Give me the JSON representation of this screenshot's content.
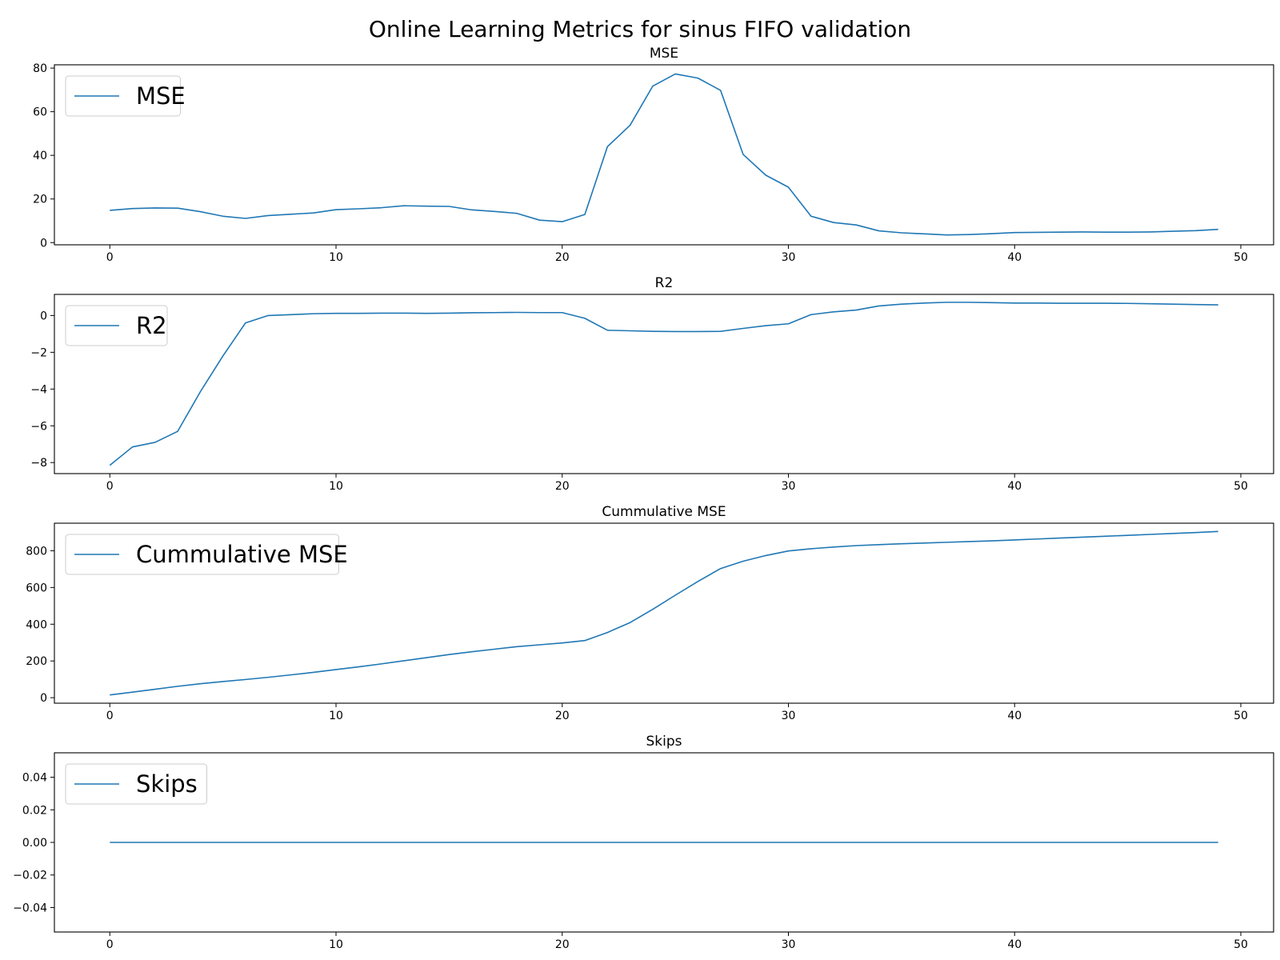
{
  "figure": {
    "title": "Online Learning Metrics for sinus FIFO validation"
  },
  "colors": {
    "line": "#1f77b4",
    "axis": "#000000",
    "legend_border": "#cccccc",
    "background": "#ffffff"
  },
  "chart_data": [
    {
      "type": "line",
      "title": "MSE",
      "xlabel": "",
      "ylabel": "",
      "xlim": [
        -2.45,
        51.45
      ],
      "ylim": [
        -1.0,
        81.5
      ],
      "xticks": [
        0,
        10,
        20,
        30,
        40,
        50
      ],
      "xtick_labels": [
        "0",
        "10",
        "20",
        "30",
        "40",
        "50"
      ],
      "yticks": [
        0,
        20,
        40,
        60,
        80
      ],
      "ytick_labels": [
        "0",
        "20",
        "40",
        "60",
        "80"
      ],
      "grid": false,
      "legend_position": "upper-left",
      "series": [
        {
          "name": "MSE",
          "x": [
            0,
            1,
            2,
            3,
            4,
            5,
            6,
            7,
            8,
            9,
            10,
            11,
            12,
            13,
            14,
            15,
            16,
            17,
            18,
            19,
            20,
            21,
            22,
            23,
            24,
            25,
            26,
            27,
            28,
            29,
            30,
            31,
            32,
            33,
            34,
            35,
            36,
            37,
            38,
            39,
            40,
            41,
            42,
            43,
            44,
            45,
            46,
            47,
            48,
            49
          ],
          "y": [
            14.8,
            15.6,
            15.9,
            15.8,
            14.2,
            12.1,
            11.1,
            12.4,
            13.0,
            13.6,
            15.1,
            15.5,
            16.0,
            16.9,
            16.7,
            16.6,
            15.0,
            14.3,
            13.4,
            10.3,
            9.6,
            12.9,
            44.0,
            53.8,
            71.7,
            77.3,
            75.4,
            69.8,
            40.4,
            30.9,
            25.4,
            12.1,
            9.2,
            8.1,
            5.4,
            4.5,
            4.0,
            3.5,
            3.7,
            4.1,
            4.6,
            4.7,
            4.8,
            4.9,
            4.8,
            4.8,
            4.9,
            5.2,
            5.5,
            6.1
          ]
        }
      ]
    },
    {
      "type": "line",
      "title": "R2",
      "xlabel": "",
      "ylabel": "",
      "xlim": [
        -2.45,
        51.45
      ],
      "ylim": [
        -8.6,
        1.15
      ],
      "xticks": [
        0,
        10,
        20,
        30,
        40,
        50
      ],
      "xtick_labels": [
        "0",
        "10",
        "20",
        "30",
        "40",
        "50"
      ],
      "yticks": [
        0,
        -2,
        -4,
        -6,
        -8
      ],
      "ytick_labels": [
        "0",
        "−2",
        "−4",
        "−6",
        "−8"
      ],
      "grid": false,
      "legend_position": "upper-left",
      "series": [
        {
          "name": "R2",
          "x": [
            0,
            1,
            2,
            3,
            4,
            5,
            6,
            7,
            8,
            9,
            10,
            11,
            12,
            13,
            14,
            15,
            16,
            17,
            18,
            19,
            20,
            21,
            22,
            23,
            24,
            25,
            26,
            27,
            28,
            29,
            30,
            31,
            32,
            33,
            34,
            35,
            36,
            37,
            38,
            39,
            40,
            41,
            42,
            43,
            44,
            45,
            46,
            47,
            48,
            49
          ],
          "y": [
            -8.15,
            -7.15,
            -6.9,
            -6.3,
            -4.15,
            -2.2,
            -0.4,
            0.0,
            0.05,
            0.1,
            0.12,
            0.12,
            0.13,
            0.13,
            0.12,
            0.13,
            0.15,
            0.16,
            0.17,
            0.16,
            0.16,
            -0.15,
            -0.8,
            -0.83,
            -0.86,
            -0.87,
            -0.87,
            -0.86,
            -0.7,
            -0.55,
            -0.45,
            0.05,
            0.2,
            0.3,
            0.52,
            0.62,
            0.68,
            0.72,
            0.72,
            0.7,
            0.68,
            0.68,
            0.67,
            0.67,
            0.67,
            0.66,
            0.64,
            0.62,
            0.6,
            0.58
          ]
        }
      ]
    },
    {
      "type": "line",
      "title": "Cummulative MSE",
      "xlabel": "",
      "ylabel": "",
      "xlim": [
        -2.45,
        51.45
      ],
      "ylim": [
        -30,
        950
      ],
      "xticks": [
        0,
        10,
        20,
        30,
        40,
        50
      ],
      "xtick_labels": [
        "0",
        "10",
        "20",
        "30",
        "40",
        "50"
      ],
      "yticks": [
        0,
        200,
        400,
        600,
        800
      ],
      "ytick_labels": [
        "0",
        "200",
        "400",
        "600",
        "800"
      ],
      "grid": false,
      "legend_position": "upper-left",
      "series": [
        {
          "name": "Cummulative MSE",
          "x": [
            0,
            1,
            2,
            3,
            4,
            5,
            6,
            7,
            8,
            9,
            10,
            11,
            12,
            13,
            14,
            15,
            16,
            17,
            18,
            19,
            20,
            21,
            22,
            23,
            24,
            25,
            26,
            27,
            28,
            29,
            30,
            31,
            32,
            33,
            34,
            35,
            36,
            37,
            38,
            39,
            40,
            41,
            42,
            43,
            44,
            45,
            46,
            47,
            48,
            49
          ],
          "y": [
            15,
            30,
            46,
            62,
            76,
            88,
            99,
            111,
            124,
            138,
            153,
            168,
            184,
            201,
            218,
            235,
            250,
            264,
            278,
            288,
            298,
            311,
            355,
            409,
            481,
            558,
            633,
            703,
            743,
            774,
            799,
            811,
            820,
            828,
            833,
            838,
            842,
            846,
            850,
            854,
            859,
            864,
            869,
            874,
            879,
            884,
            889,
            894,
            899,
            905
          ]
        }
      ]
    },
    {
      "type": "line",
      "title": "Skips",
      "xlabel": "",
      "ylabel": "",
      "xlim": [
        -2.45,
        51.45
      ],
      "ylim": [
        -0.055,
        0.055
      ],
      "xticks": [
        0,
        10,
        20,
        30,
        40,
        50
      ],
      "xtick_labels": [
        "0",
        "10",
        "20",
        "30",
        "40",
        "50"
      ],
      "yticks": [
        0.04,
        0.02,
        0.0,
        -0.02,
        -0.04
      ],
      "ytick_labels": [
        "0.04",
        "0.02",
        "0.00",
        "−0.02",
        "−0.04"
      ],
      "grid": false,
      "legend_position": "upper-left",
      "series": [
        {
          "name": "Skips",
          "x": [
            0,
            1,
            2,
            3,
            4,
            5,
            6,
            7,
            8,
            9,
            10,
            11,
            12,
            13,
            14,
            15,
            16,
            17,
            18,
            19,
            20,
            21,
            22,
            23,
            24,
            25,
            26,
            27,
            28,
            29,
            30,
            31,
            32,
            33,
            34,
            35,
            36,
            37,
            38,
            39,
            40,
            41,
            42,
            43,
            44,
            45,
            46,
            47,
            48,
            49
          ],
          "y": [
            0,
            0,
            0,
            0,
            0,
            0,
            0,
            0,
            0,
            0,
            0,
            0,
            0,
            0,
            0,
            0,
            0,
            0,
            0,
            0,
            0,
            0,
            0,
            0,
            0,
            0,
            0,
            0,
            0,
            0,
            0,
            0,
            0,
            0,
            0,
            0,
            0,
            0,
            0,
            0,
            0,
            0,
            0,
            0,
            0,
            0,
            0,
            0,
            0,
            0
          ]
        }
      ]
    }
  ]
}
